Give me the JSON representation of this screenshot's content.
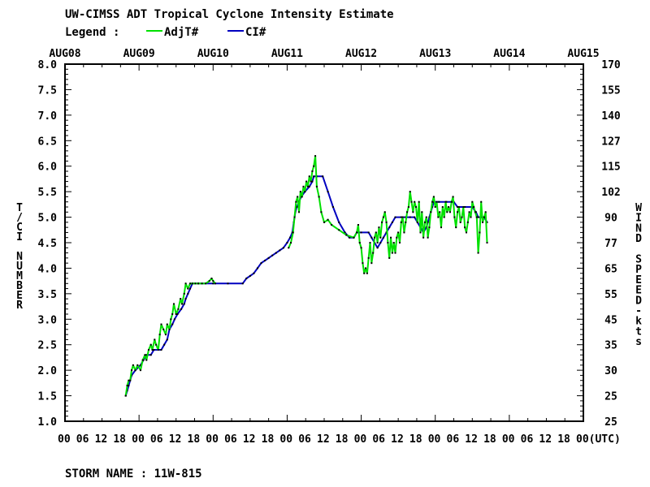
{
  "title": "UW-CIMSS ADT Tropical Cyclone Intensity Estimate",
  "legend": {
    "label": "Legend :",
    "items": [
      {
        "name": "AdjT#",
        "color": "#00e000"
      },
      {
        "name": "CI#",
        "color": "#0000c0"
      }
    ]
  },
  "storm_name_label": "STORM NAME : 11W-815",
  "chart_data": {
    "type": "line",
    "title": "UW-CIMSS ADT Tropical Cyclone Intensity Estimate",
    "x_unit": "day",
    "x_range": [
      0,
      7
    ],
    "x_origin_label": "AUG08",
    "date_labels": [
      "AUG08",
      "AUG09",
      "AUG10",
      "AUG11",
      "AUG12",
      "AUG13",
      "AUG14",
      "AUG15"
    ],
    "hour_tick_labels": [
      "00",
      "06",
      "12",
      "18",
      "00",
      "06",
      "12",
      "18",
      "00",
      "06",
      "12",
      "18",
      "00",
      "06",
      "12",
      "18",
      "00",
      "06",
      "12",
      "18",
      "00",
      "06",
      "12",
      "18",
      "00",
      "06",
      "12",
      "18",
      "00(UTC)"
    ],
    "ylabel_left": "T/CI NUMBER",
    "ylabel_right": "WIND SPEED-kts",
    "ylim": [
      1.0,
      8.0
    ],
    "left_ticks": [
      "1.0",
      "1.5",
      "2.0",
      "2.5",
      "3.0",
      "3.5",
      "4.0",
      "4.5",
      "5.0",
      "5.5",
      "6.0",
      "6.5",
      "7.0",
      "7.5",
      "8.0"
    ],
    "right_ticks": [
      {
        "t": 1.0,
        "label": "25"
      },
      {
        "t": 1.5,
        "label": "25"
      },
      {
        "t": 2.0,
        "label": "30"
      },
      {
        "t": 2.5,
        "label": "35"
      },
      {
        "t": 3.0,
        "label": "45"
      },
      {
        "t": 3.5,
        "label": "55"
      },
      {
        "t": 4.0,
        "label": "65"
      },
      {
        "t": 4.5,
        "label": "77"
      },
      {
        "t": 5.0,
        "label": "90"
      },
      {
        "t": 5.5,
        "label": "102"
      },
      {
        "t": 6.0,
        "label": "115"
      },
      {
        "t": 6.5,
        "label": "127"
      },
      {
        "t": 7.0,
        "label": "140"
      },
      {
        "t": 7.5,
        "label": "155"
      },
      {
        "t": 8.0,
        "label": "170"
      }
    ],
    "grid": false,
    "series": [
      {
        "name": "AdjT#",
        "color": "#00e000",
        "points": [
          [
            0.82,
            1.5
          ],
          [
            0.84,
            1.7
          ],
          [
            0.86,
            1.8
          ],
          [
            0.88,
            1.8
          ],
          [
            0.9,
            2.0
          ],
          [
            0.92,
            2.1
          ],
          [
            0.95,
            2.0
          ],
          [
            0.98,
            2.1
          ],
          [
            1.02,
            2.0
          ],
          [
            1.05,
            2.2
          ],
          [
            1.08,
            2.3
          ],
          [
            1.1,
            2.2
          ],
          [
            1.13,
            2.4
          ],
          [
            1.16,
            2.5
          ],
          [
            1.18,
            2.4
          ],
          [
            1.21,
            2.6
          ],
          [
            1.23,
            2.5
          ],
          [
            1.26,
            2.4
          ],
          [
            1.28,
            2.7
          ],
          [
            1.3,
            2.9
          ],
          [
            1.33,
            2.8
          ],
          [
            1.36,
            2.7
          ],
          [
            1.38,
            2.9
          ],
          [
            1.41,
            2.8
          ],
          [
            1.43,
            3.0
          ],
          [
            1.45,
            3.1
          ],
          [
            1.47,
            3.3
          ],
          [
            1.5,
            3.1
          ],
          [
            1.53,
            3.2
          ],
          [
            1.56,
            3.4
          ],
          [
            1.58,
            3.3
          ],
          [
            1.61,
            3.5
          ],
          [
            1.63,
            3.7
          ],
          [
            1.66,
            3.6
          ],
          [
            1.69,
            3.7
          ],
          [
            1.72,
            3.7
          ],
          [
            1.76,
            3.7
          ],
          [
            1.8,
            3.7
          ],
          [
            1.85,
            3.7
          ],
          [
            1.9,
            3.7
          ],
          [
            1.95,
            3.75
          ],
          [
            1.98,
            3.8
          ],
          [
            2.0,
            3.75
          ],
          [
            2.03,
            3.7
          ],
          [
            3.02,
            4.4
          ],
          [
            3.05,
            4.5
          ],
          [
            3.08,
            4.7
          ],
          [
            3.1,
            5.0
          ],
          [
            3.12,
            5.3
          ],
          [
            3.14,
            5.4
          ],
          [
            3.16,
            5.1
          ],
          [
            3.18,
            5.5
          ],
          [
            3.2,
            5.4
          ],
          [
            3.22,
            5.6
          ],
          [
            3.24,
            5.5
          ],
          [
            3.26,
            5.7
          ],
          [
            3.28,
            5.6
          ],
          [
            3.3,
            5.8
          ],
          [
            3.32,
            5.7
          ],
          [
            3.34,
            5.9
          ],
          [
            3.36,
            6.0
          ],
          [
            3.38,
            6.2
          ],
          [
            3.4,
            5.6
          ],
          [
            3.43,
            5.4
          ],
          [
            3.46,
            5.1
          ],
          [
            3.5,
            4.9
          ],
          [
            3.55,
            4.95
          ],
          [
            3.6,
            4.85
          ],
          [
            3.7,
            4.75
          ],
          [
            3.8,
            4.65
          ],
          [
            3.9,
            4.6
          ],
          [
            3.94,
            4.7
          ],
          [
            3.96,
            4.85
          ],
          [
            3.98,
            4.5
          ],
          [
            4.0,
            4.4
          ],
          [
            4.02,
            4.1
          ],
          [
            4.04,
            3.9
          ],
          [
            4.06,
            4.0
          ],
          [
            4.08,
            3.9
          ],
          [
            4.1,
            4.2
          ],
          [
            4.12,
            4.5
          ],
          [
            4.14,
            4.1
          ],
          [
            4.16,
            4.3
          ],
          [
            4.18,
            4.6
          ],
          [
            4.2,
            4.7
          ],
          [
            4.22,
            4.5
          ],
          [
            4.24,
            4.8
          ],
          [
            4.26,
            4.6
          ],
          [
            4.28,
            4.9
          ],
          [
            4.3,
            5.0
          ],
          [
            4.32,
            5.1
          ],
          [
            4.34,
            4.9
          ],
          [
            4.36,
            4.5
          ],
          [
            4.38,
            4.2
          ],
          [
            4.4,
            4.6
          ],
          [
            4.42,
            4.3
          ],
          [
            4.44,
            4.5
          ],
          [
            4.46,
            4.3
          ],
          [
            4.48,
            4.6
          ],
          [
            4.5,
            4.7
          ],
          [
            4.52,
            4.5
          ],
          [
            4.54,
            4.9
          ],
          [
            4.56,
            5.0
          ],
          [
            4.58,
            4.7
          ],
          [
            4.6,
            4.9
          ],
          [
            4.62,
            5.1
          ],
          [
            4.64,
            5.2
          ],
          [
            4.66,
            5.5
          ],
          [
            4.68,
            5.3
          ],
          [
            4.7,
            5.1
          ],
          [
            4.72,
            5.3
          ],
          [
            4.74,
            5.2
          ],
          [
            4.76,
            4.9
          ],
          [
            4.78,
            5.3
          ],
          [
            4.8,
            4.7
          ],
          [
            4.82,
            5.1
          ],
          [
            4.84,
            4.6
          ],
          [
            4.86,
            4.9
          ],
          [
            4.88,
            5.0
          ],
          [
            4.9,
            4.6
          ],
          [
            4.92,
            4.8
          ],
          [
            4.94,
            5.1
          ],
          [
            4.96,
            5.3
          ],
          [
            4.98,
            5.4
          ],
          [
            5.0,
            5.2
          ],
          [
            5.02,
            5.3
          ],
          [
            5.04,
            5.0
          ],
          [
            5.06,
            5.1
          ],
          [
            5.08,
            4.8
          ],
          [
            5.1,
            5.2
          ],
          [
            5.12,
            5.0
          ],
          [
            5.14,
            5.3
          ],
          [
            5.16,
            5.1
          ],
          [
            5.18,
            5.2
          ],
          [
            5.2,
            5.1
          ],
          [
            5.22,
            5.3
          ],
          [
            5.24,
            5.4
          ],
          [
            5.26,
            5.0
          ],
          [
            5.28,
            4.8
          ],
          [
            5.3,
            5.1
          ],
          [
            5.32,
            5.2
          ],
          [
            5.34,
            4.9
          ],
          [
            5.36,
            5.0
          ],
          [
            5.38,
            5.2
          ],
          [
            5.4,
            4.8
          ],
          [
            5.42,
            4.7
          ],
          [
            5.44,
            4.9
          ],
          [
            5.46,
            5.1
          ],
          [
            5.48,
            5.0
          ],
          [
            5.5,
            5.3
          ],
          [
            5.52,
            5.2
          ],
          [
            5.54,
            5.1
          ],
          [
            5.56,
            5.0
          ],
          [
            5.58,
            4.3
          ],
          [
            5.6,
            4.7
          ],
          [
            5.62,
            5.3
          ],
          [
            5.64,
            4.9
          ],
          [
            5.66,
            5.0
          ],
          [
            5.68,
            5.1
          ],
          [
            5.7,
            4.5
          ]
        ]
      },
      {
        "name": "CI#",
        "color": "#0000c0",
        "points": [
          [
            0.82,
            1.5
          ],
          [
            0.84,
            1.6
          ],
          [
            0.86,
            1.7
          ],
          [
            0.88,
            1.8
          ],
          [
            0.9,
            1.9
          ],
          [
            0.95,
            2.0
          ],
          [
            1.02,
            2.1
          ],
          [
            1.06,
            2.2
          ],
          [
            1.1,
            2.3
          ],
          [
            1.16,
            2.3
          ],
          [
            1.2,
            2.4
          ],
          [
            1.3,
            2.4
          ],
          [
            1.34,
            2.5
          ],
          [
            1.38,
            2.6
          ],
          [
            1.41,
            2.8
          ],
          [
            1.45,
            2.9
          ],
          [
            1.48,
            3.0
          ],
          [
            1.52,
            3.1
          ],
          [
            1.57,
            3.2
          ],
          [
            1.61,
            3.3
          ],
          [
            1.63,
            3.4
          ],
          [
            1.66,
            3.5
          ],
          [
            1.69,
            3.6
          ],
          [
            1.72,
            3.7
          ],
          [
            1.8,
            3.7
          ],
          [
            2.0,
            3.7
          ],
          [
            2.2,
            3.7
          ],
          [
            2.4,
            3.7
          ],
          [
            2.45,
            3.8
          ],
          [
            2.5,
            3.85
          ],
          [
            2.55,
            3.9
          ],
          [
            2.6,
            4.0
          ],
          [
            2.65,
            4.1
          ],
          [
            2.7,
            4.15
          ],
          [
            2.75,
            4.2
          ],
          [
            2.8,
            4.25
          ],
          [
            2.85,
            4.3
          ],
          [
            2.9,
            4.35
          ],
          [
            2.95,
            4.4
          ],
          [
            3.0,
            4.5
          ],
          [
            3.04,
            4.6
          ],
          [
            3.07,
            4.7
          ],
          [
            3.09,
            4.9
          ],
          [
            3.11,
            5.1
          ],
          [
            3.13,
            5.2
          ],
          [
            3.16,
            5.3
          ],
          [
            3.19,
            5.4
          ],
          [
            3.24,
            5.5
          ],
          [
            3.3,
            5.6
          ],
          [
            3.34,
            5.7
          ],
          [
            3.36,
            5.8
          ],
          [
            3.4,
            5.8
          ],
          [
            3.48,
            5.8
          ],
          [
            3.55,
            5.5
          ],
          [
            3.62,
            5.2
          ],
          [
            3.7,
            4.9
          ],
          [
            3.78,
            4.7
          ],
          [
            3.84,
            4.6
          ],
          [
            3.9,
            4.6
          ],
          [
            3.94,
            4.7
          ],
          [
            4.0,
            4.7
          ],
          [
            4.1,
            4.7
          ],
          [
            4.14,
            4.6
          ],
          [
            4.18,
            4.5
          ],
          [
            4.22,
            4.4
          ],
          [
            4.26,
            4.5
          ],
          [
            4.3,
            4.6
          ],
          [
            4.34,
            4.7
          ],
          [
            4.38,
            4.8
          ],
          [
            4.42,
            4.9
          ],
          [
            4.46,
            5.0
          ],
          [
            4.54,
            5.0
          ],
          [
            4.6,
            5.0
          ],
          [
            4.66,
            5.0
          ],
          [
            4.72,
            5.0
          ],
          [
            4.76,
            4.9
          ],
          [
            4.8,
            4.8
          ],
          [
            4.84,
            4.7
          ],
          [
            4.88,
            4.8
          ],
          [
            4.9,
            4.9
          ],
          [
            4.92,
            5.0
          ],
          [
            4.94,
            5.1
          ],
          [
            4.96,
            5.2
          ],
          [
            4.98,
            5.3
          ],
          [
            5.05,
            5.3
          ],
          [
            5.15,
            5.3
          ],
          [
            5.25,
            5.3
          ],
          [
            5.3,
            5.2
          ],
          [
            5.4,
            5.2
          ],
          [
            5.5,
            5.2
          ],
          [
            5.55,
            5.1
          ],
          [
            5.58,
            5.0
          ],
          [
            5.62,
            5.0
          ],
          [
            5.66,
            5.0
          ],
          [
            5.7,
            4.9
          ]
        ]
      }
    ]
  }
}
